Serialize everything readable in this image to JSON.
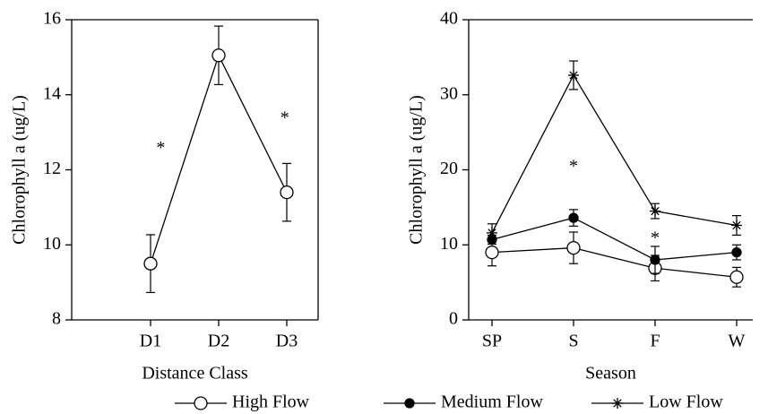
{
  "chart_data": [
    {
      "type": "line",
      "y_label": "Chlorophyll a (ug/L)",
      "x_label": "Distance Class",
      "categories": [
        "D1",
        "D2",
        "D3"
      ],
      "series": [
        {
          "marker": "open-circle",
          "values": [
            9.5,
            15.05,
            11.4
          ],
          "errors": [
            0.77,
            0.78,
            0.77
          ]
        }
      ],
      "ylim": [
        8,
        16
      ],
      "yticks": [
        8,
        10,
        12,
        14,
        16
      ],
      "annotations": [
        {
          "text": "*",
          "x": 0.15,
          "y": 12.7
        },
        {
          "text": "*",
          "x": 1.97,
          "y": 13.5
        }
      ]
    },
    {
      "type": "line",
      "y_label": "Chlorophyll a (ug/L)",
      "x_label": "Season",
      "categories": [
        "SP",
        "S",
        "F",
        "W"
      ],
      "series": [
        {
          "name": "High Flow",
          "marker": "open-circle",
          "values": [
            9.0,
            9.6,
            6.9,
            5.7
          ],
          "errors": [
            1.8,
            2.1,
            1.7,
            1.3
          ]
        },
        {
          "name": "Medium  Flow",
          "marker": "filled-circle",
          "values": [
            10.7,
            13.6,
            8.0,
            9.0
          ],
          "errors": [
            0.6,
            1.1,
            1.8,
            1.0
          ]
        },
        {
          "name": "Low Flow",
          "marker": "asterisk",
          "values": [
            11.6,
            32.6,
            14.5,
            12.6
          ],
          "errors": [
            1.2,
            1.9,
            1.0,
            1.3
          ]
        }
      ],
      "ylim": [
        0,
        40
      ],
      "yticks": [
        0,
        10,
        20,
        30,
        40
      ],
      "annotations": [
        {
          "text": "*",
          "x": 1.0,
          "y": 21
        },
        {
          "text": "*",
          "x": 2.0,
          "y": 11.5
        }
      ]
    }
  ]
}
